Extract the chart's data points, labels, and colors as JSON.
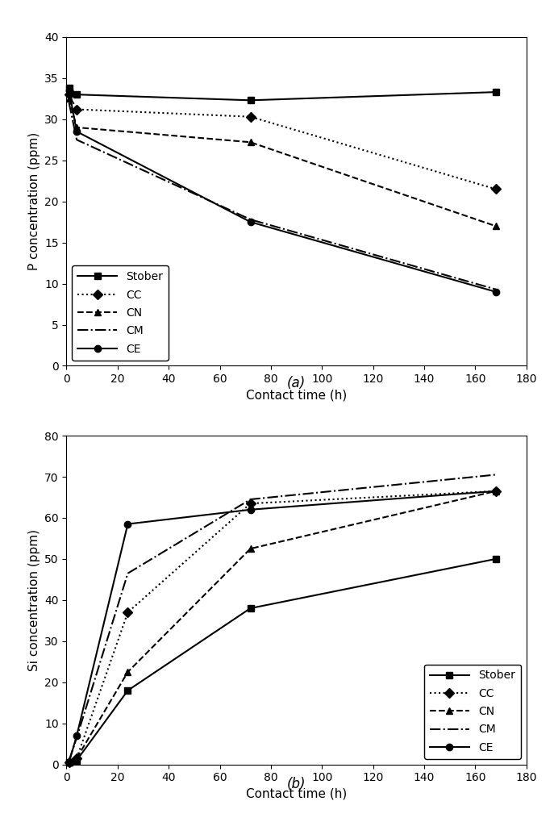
{
  "panel_a": {
    "xlabel": "Contact time (h)",
    "ylabel": "P concentration (ppm)",
    "xlim": [
      0,
      180
    ],
    "ylim": [
      0,
      40
    ],
    "xticks": [
      0,
      20,
      40,
      60,
      80,
      100,
      120,
      140,
      160,
      180
    ],
    "yticks": [
      0,
      5,
      10,
      15,
      20,
      25,
      30,
      35,
      40
    ],
    "label_text": "(a)",
    "series": [
      {
        "label": "Stober",
        "x": [
          1,
          4,
          72,
          168
        ],
        "y": [
          33.8,
          33.0,
          32.3,
          33.3
        ],
        "linestyle": "-",
        "marker": "s",
        "dashes": []
      },
      {
        "label": "CC",
        "x": [
          1,
          4,
          72,
          168
        ],
        "y": [
          33.0,
          31.2,
          30.3,
          21.5
        ],
        "linestyle": ":",
        "marker": "D",
        "dashes": []
      },
      {
        "label": "CN",
        "x": [
          1,
          4,
          72,
          168
        ],
        "y": [
          32.5,
          29.0,
          27.2,
          17.0
        ],
        "linestyle": "--",
        "marker": "^",
        "dashes": []
      },
      {
        "label": "CM",
        "x": [
          1,
          4,
          72,
          168
        ],
        "y": [
          32.0,
          27.5,
          17.8,
          9.3
        ],
        "linestyle": "-.",
        "marker": null,
        "dashes": []
      },
      {
        "label": "CE",
        "x": [
          1,
          4,
          72,
          168
        ],
        "y": [
          33.5,
          28.5,
          17.5,
          9.0
        ],
        "linestyle": "-",
        "marker": "o",
        "dashes": []
      }
    ],
    "legend_loc": "lower left",
    "legend_bbox": null
  },
  "panel_b": {
    "xlabel": "Contact time (h)",
    "ylabel": "Si concentration (ppm)",
    "xlim": [
      0,
      180
    ],
    "ylim": [
      0,
      80
    ],
    "xticks": [
      0,
      20,
      40,
      60,
      80,
      100,
      120,
      140,
      160,
      180
    ],
    "yticks": [
      0,
      10,
      20,
      30,
      40,
      50,
      60,
      70,
      80
    ],
    "label_text": "(b)",
    "series": [
      {
        "label": "Stober",
        "x": [
          1,
          4,
          24,
          72,
          168
        ],
        "y": [
          0.5,
          1.0,
          18.0,
          38.0,
          50.0
        ],
        "linestyle": "-",
        "marker": "s",
        "dashes": []
      },
      {
        "label": "CC",
        "x": [
          1,
          4,
          24,
          72,
          168
        ],
        "y": [
          0.5,
          1.5,
          37.0,
          63.5,
          66.5
        ],
        "linestyle": ":",
        "marker": "D",
        "dashes": []
      },
      {
        "label": "CN",
        "x": [
          1,
          4,
          24,
          72,
          168
        ],
        "y": [
          0.5,
          1.5,
          22.5,
          52.5,
          66.5
        ],
        "linestyle": "--",
        "marker": "^",
        "dashes": []
      },
      {
        "label": "CM",
        "x": [
          1,
          4,
          24,
          72,
          168
        ],
        "y": [
          1.0,
          6.5,
          46.5,
          64.5,
          70.5
        ],
        "linestyle": "-.",
        "marker": null,
        "dashes": []
      },
      {
        "label": "CE",
        "x": [
          1,
          4,
          24,
          72,
          168
        ],
        "y": [
          0.5,
          7.0,
          58.5,
          62.0,
          66.5
        ],
        "linestyle": "-",
        "marker": "o",
        "dashes": []
      }
    ],
    "legend_loc": "lower right",
    "legend_bbox": null
  },
  "fig_width": 6.87,
  "fig_height": 10.19,
  "dpi": 100,
  "color": "#000000",
  "markersize": 6,
  "linewidth": 1.5,
  "fontsize_label": 11,
  "fontsize_tick": 10,
  "fontsize_legend": 10,
  "fontsize_sublabel": 12
}
